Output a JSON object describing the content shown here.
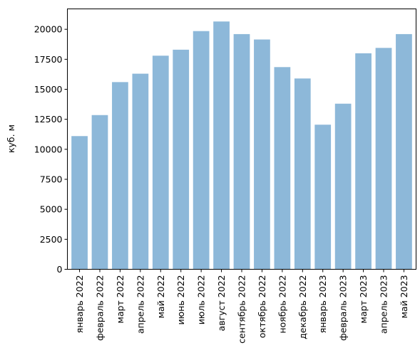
{
  "chart_data": {
    "type": "bar",
    "title": "",
    "xlabel": "",
    "ylabel": "куб. м",
    "ylim": [
      0,
      21700
    ],
    "yticks": [
      0,
      2500,
      5000,
      7500,
      10000,
      12500,
      15000,
      17500,
      20000
    ],
    "grid": false,
    "legend": "none",
    "bar_color": "#8db8d9",
    "categories": [
      "январь 2022",
      "февраль 2022",
      "март 2022",
      "апрель 2022",
      "май 2022",
      "июнь 2022",
      "июль 2022",
      "август 2022",
      "сентябрь 2022",
      "октябрь 2022",
      "ноябрь 2022",
      "декабрь 2022",
      "январь 2023",
      "февраль 2023",
      "март 2023",
      "апрель 2023",
      "май 2023"
    ],
    "values": [
      11100,
      12850,
      15600,
      16300,
      17800,
      18300,
      19850,
      20650,
      19600,
      19150,
      16850,
      15900,
      12050,
      13800,
      18000,
      18450,
      19600
    ]
  }
}
